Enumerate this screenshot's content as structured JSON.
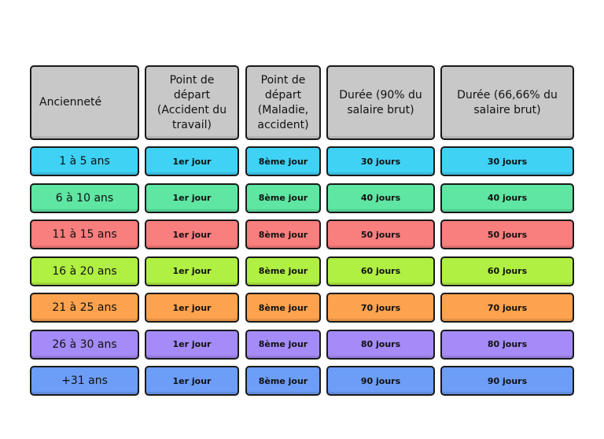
{
  "headers": [
    "Ancienneté",
    "Point de\ndépart\n(Accident du\ntravail)",
    "Point de\ndépart\n(Maladie,\naccident)",
    "Durée (90% du\nsalaire brut)",
    "Durée (66,66% du\nsalaire brut)"
  ],
  "rows": [
    {
      "label": "1 à 5 ans",
      "color": "#3fd2f5",
      "cells": [
        "1er jour",
        "8ème jour",
        "30 jours",
        "30 jours"
      ]
    },
    {
      "label": "6 à 10 ans",
      "color": "#5ee6a2",
      "cells": [
        "1er jour",
        "8ème jour",
        "40 jours",
        "40 jours"
      ]
    },
    {
      "label": "11 à 15 ans",
      "color": "#f97e7e",
      "cells": [
        "1er jour",
        "8ème jour",
        "50 jours",
        "50 jours"
      ]
    },
    {
      "label": "16 à 20 ans",
      "color": "#b0f042",
      "cells": [
        "1er jour",
        "8ème jour",
        "60 jours",
        "60 jours"
      ]
    },
    {
      "label": "21 à 25 ans",
      "color": "#fda24e",
      "cells": [
        "1er jour",
        "8ème jour",
        "70 jours",
        "70 jours"
      ]
    },
    {
      "label": "26 à 30 ans",
      "color": "#a58bf7",
      "cells": [
        "1er jour",
        "8ème jour",
        "80 jours",
        "80 jours"
      ]
    },
    {
      "label": "+31 ans",
      "color": "#6c9ef7",
      "cells": [
        "1er jour",
        "8ème jour",
        "90 jours",
        "90 jours"
      ]
    }
  ]
}
